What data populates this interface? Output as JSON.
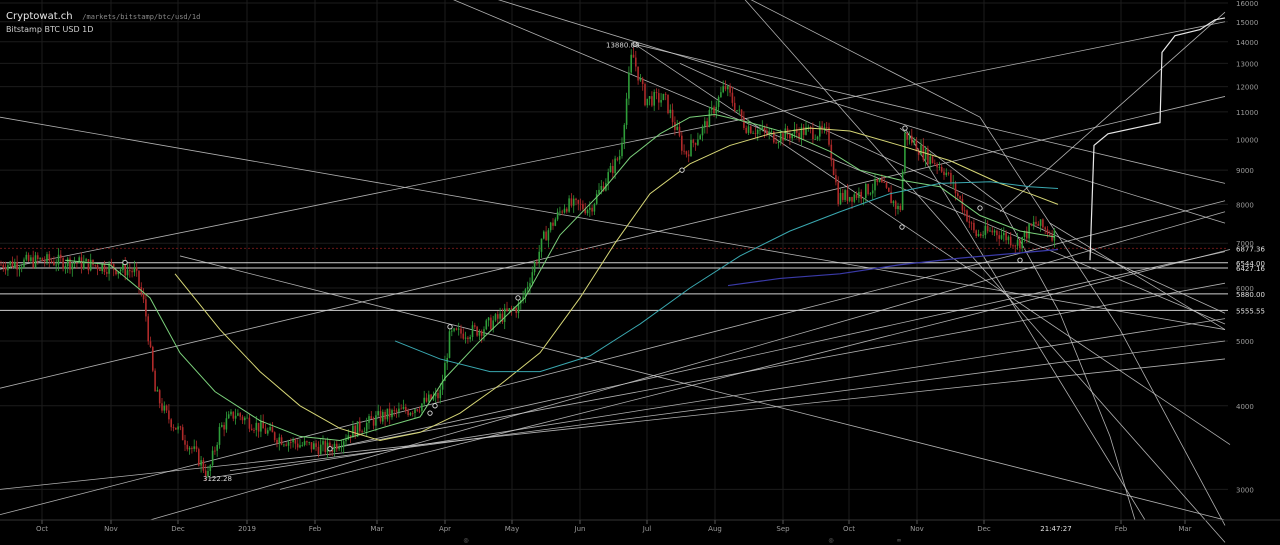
{
  "header": {
    "site": "Cryptowat.ch",
    "path": "/markets/bitstamp/btc/usd/1d",
    "symbol": "Bitstamp BTC USD 1D"
  },
  "colors": {
    "background": "#000000",
    "grid": "#1c1c1c",
    "candle_up": "#2f9e3a",
    "candle_down": "#b02a2a",
    "trendline": "#cfcfcf",
    "ma_fast": "#7bd07b",
    "ma_mid": "#d6d676",
    "ma_slow": "#3aa8b0",
    "ma_long": "#3a3aa8",
    "horizontal_line": "#d0d0d0",
    "cursor_line": "#7a1a1a"
  },
  "chart_data": {
    "type": "candlestick",
    "x_axis": {
      "labels": [
        "Oct",
        "Nov",
        "Dec",
        "2019",
        "Feb",
        "Mar",
        "Apr",
        "May",
        "Jun",
        "Jul",
        "Aug",
        "Sep",
        "Oct",
        "Nov",
        "Dec",
        "Feb",
        "Mar"
      ],
      "time_label": "21:47:27"
    },
    "y_axis": {
      "scale": "log",
      "range": [
        2700,
        16000
      ],
      "ticks": [
        3000,
        4000,
        5000,
        6000,
        7000,
        8000,
        9000,
        10000,
        11000,
        12000,
        13000,
        14000,
        15000,
        16000
      ]
    },
    "price_labels": [
      "6877.36",
      "6544.00",
      "6427.16",
      "5880.00",
      "5555.55"
    ],
    "horizontal_levels": [
      6544,
      6427.16,
      5880,
      5555.55
    ],
    "annotations": [
      {
        "text": "13880.00",
        "x_label": "Jun",
        "y": 13880
      },
      {
        "text": "3122.28",
        "x_label": "Dec",
        "y": 3122.28
      }
    ],
    "last_price": 6877.36,
    "moving_averages": [
      {
        "color": "ma_fast"
      },
      {
        "color": "ma_mid"
      },
      {
        "color": "ma_slow"
      },
      {
        "color": "ma_long"
      }
    ],
    "price_path": [
      [
        0,
        6500
      ],
      [
        40,
        6600
      ],
      [
        75,
        6550
      ],
      [
        110,
        6450
      ],
      [
        135,
        6350
      ],
      [
        145,
        5600
      ],
      [
        155,
        4200
      ],
      [
        165,
        3900
      ],
      [
        180,
        3650
      ],
      [
        195,
        3400
      ],
      [
        208,
        3150
      ],
      [
        220,
        3700
      ],
      [
        235,
        3900
      ],
      [
        255,
        3750
      ],
      [
        275,
        3600
      ],
      [
        300,
        3500
      ],
      [
        330,
        3450
      ],
      [
        350,
        3650
      ],
      [
        380,
        3850
      ],
      [
        410,
        3950
      ],
      [
        440,
        4150
      ],
      [
        450,
        5100
      ],
      [
        480,
        5200
      ],
      [
        520,
        5650
      ],
      [
        545,
        7200
      ],
      [
        565,
        8000
      ],
      [
        590,
        7900
      ],
      [
        620,
        9500
      ],
      [
        632,
        13500
      ],
      [
        645,
        11500
      ],
      [
        665,
        11500
      ],
      [
        685,
        9500
      ],
      [
        705,
        10500
      ],
      [
        725,
        12000
      ],
      [
        745,
        10500
      ],
      [
        775,
        10100
      ],
      [
        805,
        10300
      ],
      [
        828,
        10200
      ],
      [
        838,
        8200
      ],
      [
        860,
        8300
      ],
      [
        880,
        8600
      ],
      [
        900,
        7800
      ],
      [
        905,
        10200
      ],
      [
        925,
        9500
      ],
      [
        945,
        9000
      ],
      [
        962,
        8000
      ],
      [
        975,
        7200
      ],
      [
        995,
        7300
      ],
      [
        1018,
        7000
      ],
      [
        1035,
        7500
      ],
      [
        1055,
        7200
      ]
    ],
    "fast_ma": [
      [
        65,
        6600
      ],
      [
        110,
        6500
      ],
      [
        150,
        5800
      ],
      [
        180,
        4800
      ],
      [
        215,
        4200
      ],
      [
        260,
        3800
      ],
      [
        300,
        3600
      ],
      [
        340,
        3550
      ],
      [
        380,
        3700
      ],
      [
        420,
        3850
      ],
      [
        445,
        4400
      ],
      [
        480,
        5000
      ],
      [
        525,
        5800
      ],
      [
        560,
        7200
      ],
      [
        600,
        8300
      ],
      [
        630,
        9400
      ],
      [
        660,
        10200
      ],
      [
        690,
        10800
      ],
      [
        715,
        10900
      ],
      [
        750,
        10600
      ],
      [
        790,
        10200
      ],
      [
        830,
        9600
      ],
      [
        860,
        9000
      ],
      [
        900,
        8700
      ],
      [
        940,
        8500
      ],
      [
        980,
        7700
      ],
      [
        1020,
        7300
      ],
      [
        1055,
        7150
      ]
    ],
    "mid_ma": [
      [
        175,
        6300
      ],
      [
        220,
        5200
      ],
      [
        260,
        4500
      ],
      [
        300,
        4000
      ],
      [
        340,
        3700
      ],
      [
        380,
        3550
      ],
      [
        420,
        3650
      ],
      [
        460,
        3900
      ],
      [
        500,
        4300
      ],
      [
        540,
        4800
      ],
      [
        580,
        5800
      ],
      [
        615,
        7000
      ],
      [
        650,
        8300
      ],
      [
        690,
        9200
      ],
      [
        730,
        9800
      ],
      [
        770,
        10200
      ],
      [
        810,
        10400
      ],
      [
        850,
        10300
      ],
      [
        900,
        9800
      ],
      [
        950,
        9300
      ],
      [
        1000,
        8600
      ],
      [
        1030,
        8300
      ],
      [
        1058,
        8000
      ]
    ],
    "slow_ma": [
      [
        395,
        5000
      ],
      [
        440,
        4700
      ],
      [
        490,
        4500
      ],
      [
        540,
        4500
      ],
      [
        590,
        4750
      ],
      [
        640,
        5300
      ],
      [
        690,
        6000
      ],
      [
        740,
        6700
      ],
      [
        790,
        7300
      ],
      [
        840,
        7800
      ],
      [
        890,
        8300
      ],
      [
        940,
        8600
      ],
      [
        990,
        8650
      ],
      [
        1030,
        8500
      ],
      [
        1058,
        8450
      ]
    ],
    "long_ma": [
      [
        728,
        6050
      ],
      [
        780,
        6200
      ],
      [
        840,
        6300
      ],
      [
        900,
        6500
      ],
      [
        960,
        6650
      ],
      [
        1010,
        6750
      ],
      [
        1058,
        6850
      ]
    ],
    "trendlines": [
      [
        [
          0,
          6400
        ],
        [
          1225,
          15000
        ]
      ],
      [
        [
          0,
          4250
        ],
        [
          1225,
          11600
        ]
      ],
      [
        [
          0,
          2750
        ],
        [
          1225,
          8100
        ]
      ],
      [
        [
          150,
          2700
        ],
        [
          1225,
          7800
        ]
      ],
      [
        [
          210,
          3120
        ],
        [
          1225,
          5400
        ]
      ],
      [
        [
          230,
          3200
        ],
        [
          1225,
          5000
        ]
      ],
      [
        [
          0,
          3000
        ],
        [
          1225,
          4700
        ]
      ],
      [
        [
          330,
          3450
        ],
        [
          1225,
          6800
        ]
      ],
      [
        [
          330,
          3450
        ],
        [
          1225,
          6100
        ]
      ],
      [
        [
          280,
          3000
        ],
        [
          1230,
          6850
        ]
      ],
      [
        [
          180,
          6700
        ],
        [
          1225,
          2700
        ]
      ],
      [
        [
          0,
          10800
        ],
        [
          1225,
          5200
        ]
      ],
      [
        [
          480,
          16500
        ],
        [
          1225,
          7500
        ]
      ],
      [
        [
          440,
          16500
        ],
        [
          1225,
          5300
        ]
      ],
      [
        [
          635,
          13880
        ],
        [
          1230,
          3500
        ]
      ],
      [
        [
          680,
          13000
        ],
        [
          1225,
          5500
        ]
      ],
      [
        [
          905,
          10400
        ],
        [
          1145,
          2700
        ]
      ],
      [
        [
          635,
          13880
        ],
        [
          1225,
          8600
        ]
      ],
      [
        [
          1050,
          7500
        ],
        [
          1225,
          5200
        ]
      ],
      [
        [
          1000,
          7800
        ],
        [
          1225,
          15500
        ]
      ],
      [
        [
          740,
          16500
        ],
        [
          1225,
          2500
        ]
      ]
    ],
    "arcs": [
      [
        [
          900,
          10400
        ],
        [
          1000,
          8000
        ],
        [
          1060,
          5500
        ],
        [
          1110,
          3600
        ],
        [
          1135,
          2700
        ]
      ],
      [
        [
          740,
          16500
        ],
        [
          980,
          10800
        ],
        [
          1120,
          5200
        ],
        [
          1225,
          2650
        ]
      ]
    ],
    "projection": [
      [
        1090,
        6600
      ],
      [
        1094,
        9800
      ],
      [
        1108,
        10200
      ],
      [
        1160,
        10600
      ],
      [
        1162,
        13500
      ],
      [
        1175,
        14300
      ],
      [
        1200,
        14600
      ],
      [
        1215,
        15100
      ],
      [
        1225,
        15200
      ]
    ],
    "pivot_points": [
      [
        125,
        6550
      ],
      [
        635,
        13880
      ],
      [
        682,
        9000
      ],
      [
        905,
        10400
      ],
      [
        902,
        7400
      ],
      [
        980,
        7900
      ],
      [
        1020,
        6600
      ],
      [
        330,
        3450
      ],
      [
        430,
        3900
      ],
      [
        435,
        4000
      ],
      [
        450,
        5250
      ],
      [
        518,
        5800
      ]
    ]
  }
}
